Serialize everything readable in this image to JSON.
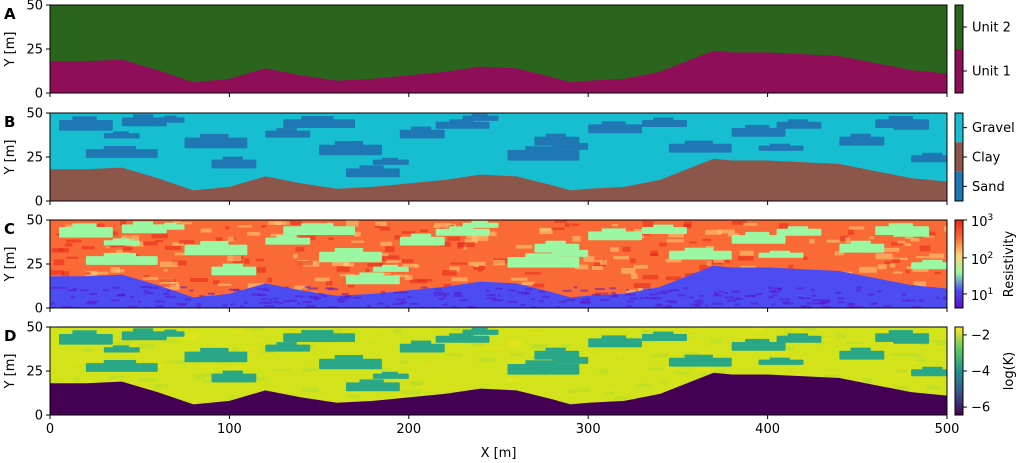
{
  "xlabel": "X [m]",
  "x_ticks": [
    "0",
    "100",
    "200",
    "300",
    "400",
    "500"
  ],
  "chart_data": [
    {
      "panel": "A",
      "type": "heatmap",
      "xlim": [
        0,
        500
      ],
      "ylim": [
        0,
        50
      ],
      "ylabel": "Y [m]",
      "y_ticks": [
        "0",
        "25",
        "50"
      ],
      "colorbar": {
        "type": "categorical",
        "labels": [
          "Unit 2",
          "Unit 1"
        ],
        "colors": [
          "#2b641c",
          "#8e0e58"
        ]
      }
    },
    {
      "panel": "B",
      "type": "heatmap",
      "xlim": [
        0,
        500
      ],
      "ylim": [
        0,
        50
      ],
      "ylabel": "Y [m]",
      "y_ticks": [
        "0",
        "25",
        "50"
      ],
      "colorbar": {
        "type": "categorical",
        "labels": [
          "Gravel",
          "Clay",
          "Sand"
        ],
        "colors": [
          "#17bed0",
          "#8d564b",
          "#1f77b4"
        ]
      }
    },
    {
      "panel": "C",
      "type": "heatmap",
      "xlim": [
        0,
        500
      ],
      "ylim": [
        0,
        50
      ],
      "ylabel": "Y [m]",
      "y_ticks": [
        "0",
        "25",
        "50"
      ],
      "colorbar": {
        "type": "log",
        "label": "Resistivity",
        "tick_base": "10",
        "tick_exponents": [
          "1",
          "2",
          "3"
        ],
        "colors": [
          "#5a10c8",
          "#4c4cf0",
          "#9bf7a2",
          "#fcd27a",
          "#f96a36",
          "#e7271a"
        ]
      }
    },
    {
      "panel": "D",
      "type": "heatmap",
      "xlim": [
        0,
        500
      ],
      "ylim": [
        0,
        50
      ],
      "ylabel": "Y [m]",
      "y_ticks": [
        "0",
        "25",
        "50"
      ],
      "colorbar": {
        "type": "linear",
        "label": "log(K)",
        "ticks": [
          "−2",
          "−4",
          "−6"
        ],
        "colors": [
          "#440154",
          "#3b528b",
          "#21918c",
          "#5ec962",
          "#fde725"
        ]
      }
    }
  ],
  "boundary_profile": {
    "x": [
      0,
      20,
      40,
      60,
      80,
      100,
      120,
      140,
      160,
      180,
      200,
      220,
      240,
      260,
      280,
      290,
      300,
      320,
      340,
      360,
      370,
      380,
      400,
      420,
      440,
      460,
      480,
      500
    ],
    "y": [
      18,
      18,
      19,
      13,
      6,
      8,
      14,
      10,
      7,
      8,
      10,
      12,
      15,
      14,
      9,
      6,
      7,
      8,
      12,
      20,
      24,
      23,
      23,
      22,
      21,
      17,
      13,
      11
    ]
  },
  "lens_patches": {
    "x": [
      5,
      40,
      20,
      75,
      90,
      130,
      150,
      165,
      195,
      215,
      255,
      270,
      300,
      330,
      345,
      380,
      405,
      440,
      460,
      480,
      30,
      120,
      230,
      280,
      395,
      470,
      60,
      180
    ],
    "y": [
      43,
      45,
      27,
      33,
      21,
      44,
      29,
      16,
      38,
      43,
      26,
      34,
      41,
      44,
      30,
      39,
      43,
      34,
      44,
      24,
      37,
      38,
      47,
      31,
      30,
      42,
      46,
      22
    ],
    "w": [
      30,
      25,
      40,
      35,
      25,
      40,
      35,
      30,
      25,
      30,
      40,
      25,
      30,
      25,
      35,
      30,
      25,
      25,
      30,
      25,
      20,
      25,
      20,
      20,
      25,
      20,
      15,
      20
    ],
    "h": [
      6,
      5,
      5,
      6,
      5,
      5,
      6,
      5,
      5,
      4,
      6,
      5,
      5,
      4,
      5,
      5,
      4,
      5,
      5,
      4,
      3,
      4,
      3,
      4,
      3,
      3,
      3,
      3
    ]
  }
}
